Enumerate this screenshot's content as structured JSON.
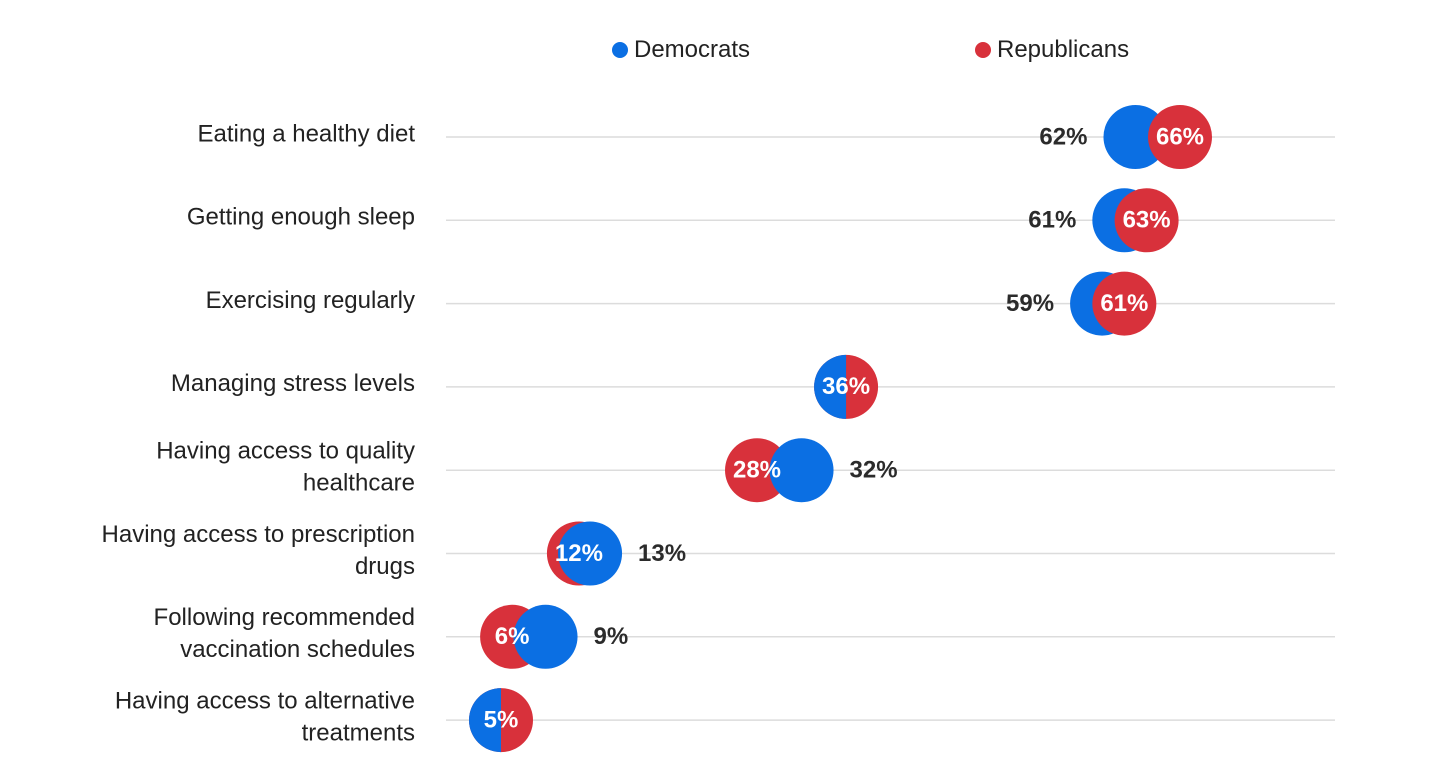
{
  "chart_data": {
    "type": "dot",
    "categories": [
      [
        "Eating a healthy diet"
      ],
      [
        "Getting enough sleep"
      ],
      [
        "Exercising regularly"
      ],
      [
        "Managing stress levels"
      ],
      [
        "Having access to quality",
        "healthcare"
      ],
      [
        "Having access to prescription",
        "drugs"
      ],
      [
        "Following recommended",
        "vaccination schedules"
      ],
      [
        "Having access to alternative",
        "treatments"
      ]
    ],
    "series": [
      {
        "name": "Democrats",
        "color": "#0b6fe3",
        "values": [
          62,
          61,
          59,
          36,
          32,
          13,
          9,
          5
        ],
        "labels": [
          "62%",
          "61%",
          "59%",
          "36%",
          "32%",
          "13%",
          "9%",
          "5%"
        ]
      },
      {
        "name": "Republicans",
        "color": "#d8313b",
        "values": [
          66,
          63,
          61,
          36,
          28,
          12,
          6,
          5
        ],
        "labels": [
          "66%",
          "63%",
          "61%",
          "36%",
          "28%",
          "12%",
          "6%",
          "5%"
        ]
      }
    ],
    "xlim": [
      5,
      66
    ],
    "grid": true,
    "legend_position": "top"
  }
}
